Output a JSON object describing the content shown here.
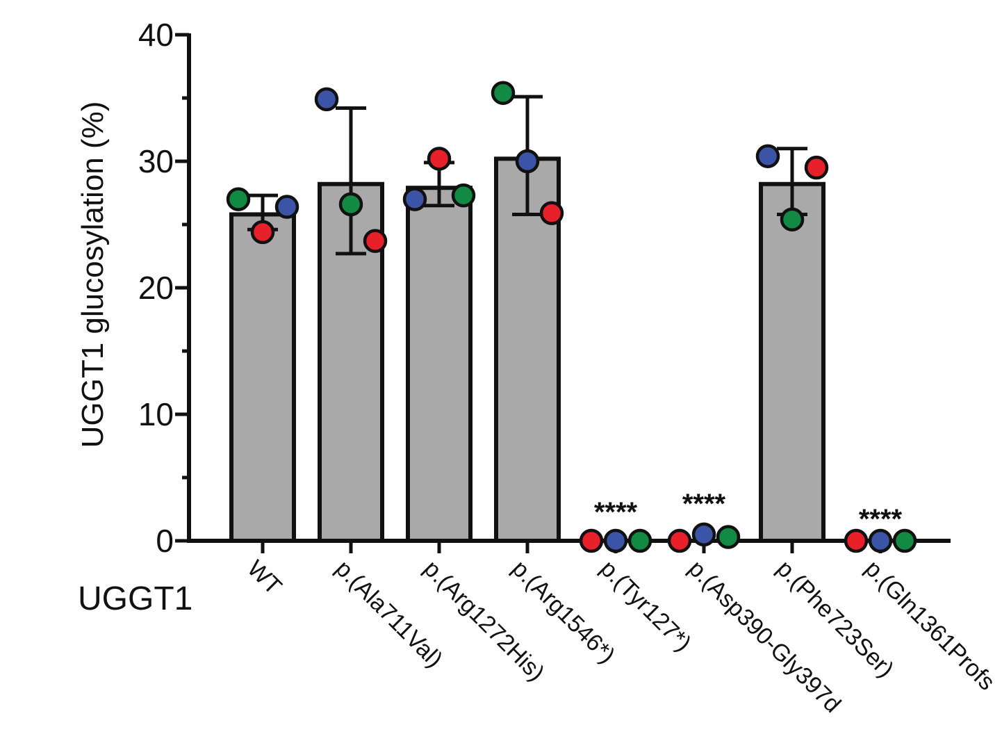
{
  "chart_data": {
    "type": "bar",
    "ylabel": "UGGT1 glucosylation (%)",
    "group_label": "UGGT1",
    "ylim": [
      0,
      40
    ],
    "yticks": [
      0,
      10,
      20,
      30,
      40
    ],
    "categories": [
      "WT",
      "p.(Ala711Val)",
      "p.(Arg1272His)",
      "p.(Arg1546*)",
      "p.(Tyr127*)",
      "p.(Asp390-Gly397d",
      "p.(Phe723Ser)",
      "p.(Gln1361Profs"
    ],
    "values": [
      25.8,
      28.2,
      27.9,
      30.2,
      0,
      0,
      28.2,
      0
    ],
    "error_low": [
      24.6,
      22.7,
      26.5,
      25.8,
      0,
      0,
      25.8,
      0
    ],
    "error_high": [
      27.3,
      34.2,
      29.9,
      35.1,
      0,
      0,
      31.0,
      0
    ],
    "significance": [
      "",
      "",
      "",
      "",
      "****",
      "****",
      "",
      "****"
    ],
    "replicate_colors": {
      "red": "#e8202a",
      "blue": "#3b54a5",
      "green": "#138a43"
    },
    "points": [
      [
        {
          "c": "green",
          "v": 27.0
        },
        {
          "c": "red",
          "v": 24.4
        },
        {
          "c": "blue",
          "v": 26.4
        }
      ],
      [
        {
          "c": "blue",
          "v": 34.9
        },
        {
          "c": "green",
          "v": 26.6
        },
        {
          "c": "red",
          "v": 23.7
        }
      ],
      [
        {
          "c": "blue",
          "v": 27.0
        },
        {
          "c": "red",
          "v": 30.2
        },
        {
          "c": "green",
          "v": 27.3
        }
      ],
      [
        {
          "c": "green",
          "v": 35.4
        },
        {
          "c": "blue",
          "v": 30.0
        },
        {
          "c": "red",
          "v": 25.9
        }
      ],
      [
        {
          "c": "red",
          "v": 0
        },
        {
          "c": "blue",
          "v": 0
        },
        {
          "c": "green",
          "v": 0
        }
      ],
      [
        {
          "c": "red",
          "v": 0
        },
        {
          "c": "blue",
          "v": 0.5
        },
        {
          "c": "green",
          "v": 0.3
        }
      ],
      [
        {
          "c": "blue",
          "v": 30.4
        },
        {
          "c": "green",
          "v": 25.4
        },
        {
          "c": "red",
          "v": 29.5
        }
      ],
      [
        {
          "c": "red",
          "v": 0
        },
        {
          "c": "blue",
          "v": 0
        },
        {
          "c": "green",
          "v": 0
        }
      ]
    ],
    "bar_color": "#a9a9a9"
  }
}
